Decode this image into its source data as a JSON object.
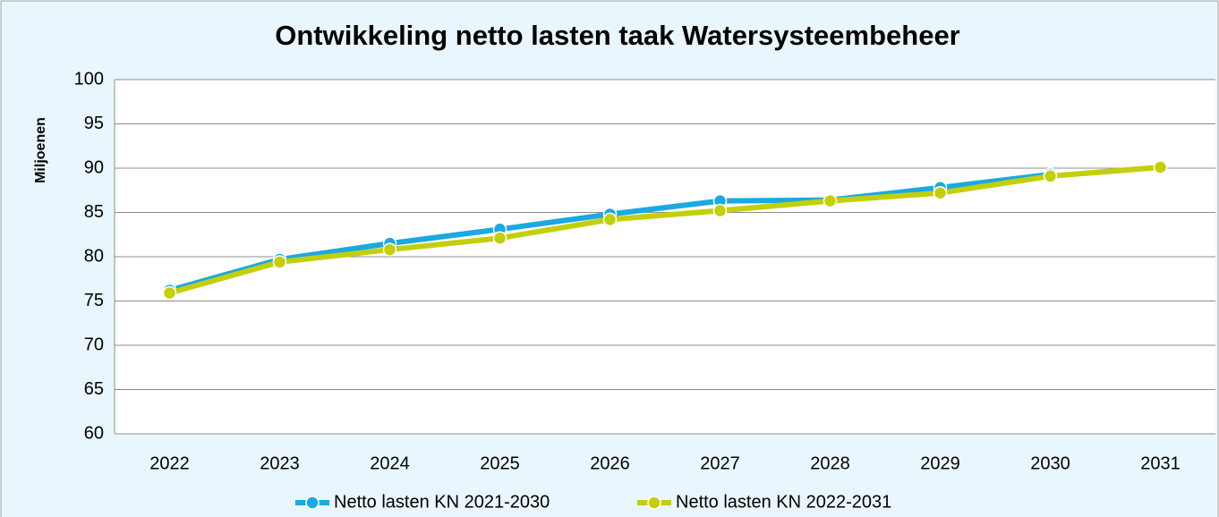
{
  "chart_data": {
    "type": "line",
    "title": "Ontwikkeling netto lasten taak Watersysteembeheer",
    "y_label": "Miljoenen",
    "categories": [
      "2022",
      "2023",
      "2024",
      "2025",
      "2026",
      "2027",
      "2028",
      "2029",
      "2030",
      "2031"
    ],
    "series": [
      {
        "name": "Netto lasten KN 2021-2030",
        "color": "#1aa9e0",
        "values": [
          76.2,
          79.7,
          81.5,
          83.1,
          84.8,
          86.3,
          86.4,
          87.8,
          89.3,
          null
        ]
      },
      {
        "name": "Netto lasten KN 2022-2031",
        "color": "#c3cf0a",
        "values": [
          75.9,
          79.4,
          80.8,
          82.1,
          84.2,
          85.2,
          86.3,
          87.2,
          89.1,
          90.1
        ]
      }
    ],
    "ylim": [
      60,
      100
    ],
    "yticks": [
      60,
      65,
      70,
      75,
      80,
      85,
      90,
      95,
      100
    ],
    "grid": true,
    "legend": "bottom"
  }
}
